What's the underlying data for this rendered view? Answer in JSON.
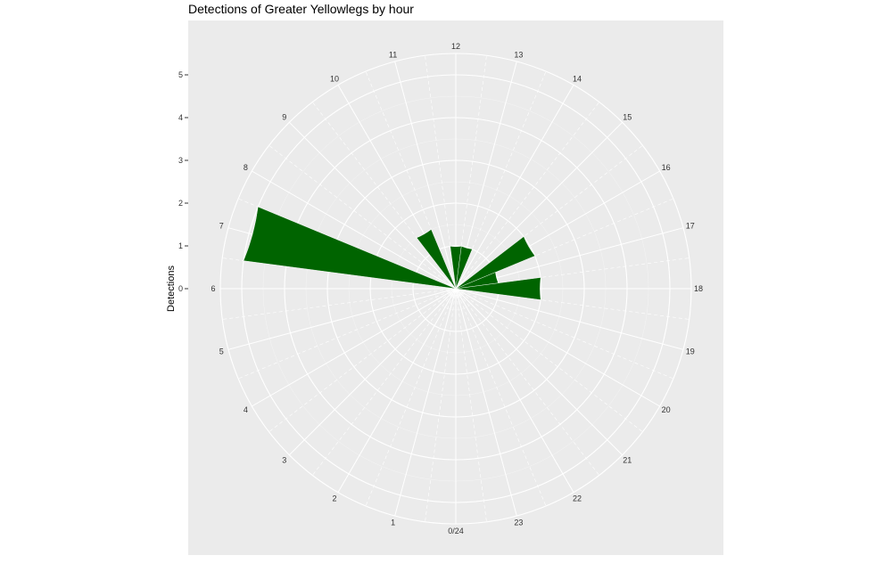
{
  "chart_data": {
    "type": "bar",
    "coord": "polar",
    "title": "Detections of Greater Yellowlegs by hour",
    "xlabel": "",
    "ylabel": "Detections",
    "x_ticks": [
      "0/24",
      "1",
      "2",
      "3",
      "4",
      "5",
      "6",
      "7",
      "8",
      "9",
      "10",
      "11",
      "12",
      "13",
      "14",
      "15",
      "16",
      "17",
      "18",
      "19",
      "20",
      "21",
      "22",
      "23"
    ],
    "y_ticks": [
      "0",
      "1",
      "2",
      "3",
      "4",
      "5"
    ],
    "ylim": [
      0,
      5.5
    ],
    "grid": true,
    "bar_color": "#006400",
    "panel_color": "#EBEBEB",
    "categories": [
      "7",
      "10",
      "12",
      "13",
      "16",
      "17",
      "18"
    ],
    "values": [
      5,
      1.5,
      1,
      1,
      2,
      1,
      2
    ]
  }
}
